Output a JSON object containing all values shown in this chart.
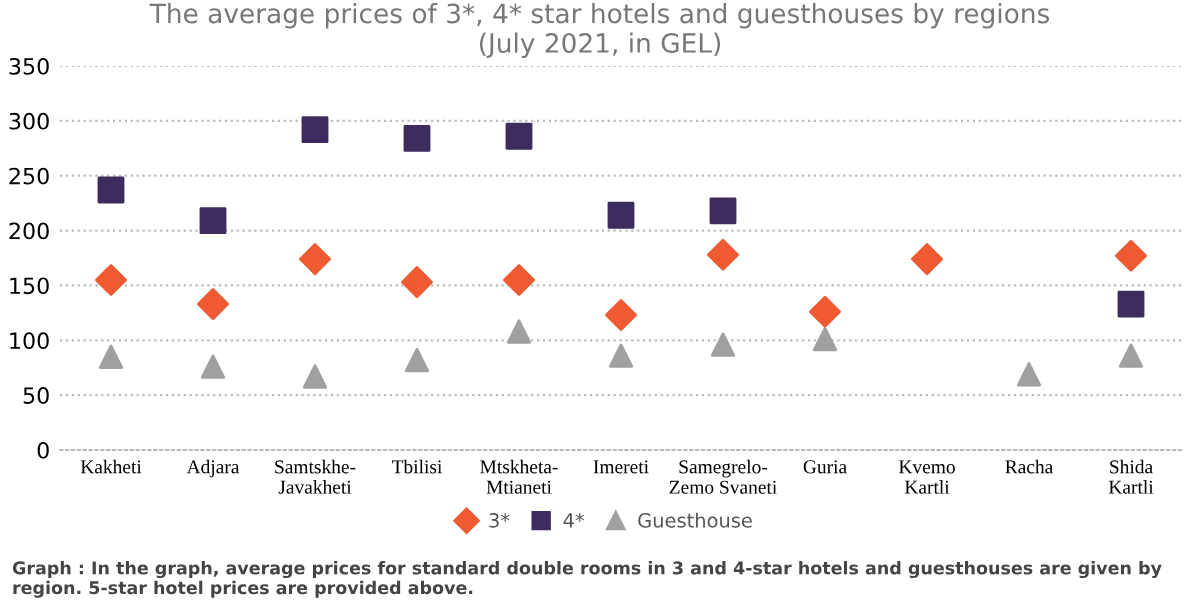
{
  "chart_data": {
    "type": "scatter",
    "title": "The average prices of 3*, 4* star hotels and guesthouses by regions\n(July 2021, in GEL)",
    "categories": [
      "Kakheti",
      "Adjara",
      "Samtskhe-\nJavakheti",
      "Tbilisi",
      "Mtskheta-\nMtianeti",
      "Imereti",
      "Samegrelo-\nZemo Svaneti",
      "Guria",
      "Kvemo\nKartli",
      "Racha",
      "Shida\nKartli"
    ],
    "series": [
      {
        "name": "3*",
        "color": "#f05a32",
        "marker": "diamond",
        "values": [
          155,
          133,
          174,
          153,
          155,
          123,
          178,
          126,
          174,
          null,
          177
        ]
      },
      {
        "name": "4*",
        "color": "#3d2c5e",
        "marker": "square",
        "values": [
          237,
          209,
          292,
          284,
          286,
          214,
          218,
          null,
          null,
          null,
          133
        ]
      },
      {
        "name": "Guesthouse",
        "color": "#a0a0a0",
        "marker": "triangle",
        "values": [
          85,
          76,
          67,
          82,
          108,
          86,
          96,
          101,
          null,
          69,
          86
        ]
      }
    ],
    "ylim": [
      0,
      350
    ],
    "yticks": [
      0,
      50,
      100,
      150,
      200,
      250,
      300,
      350
    ],
    "grid": "y",
    "legend": "bottom",
    "annotations": [
      "Graph : In the graph, average prices for standard double rooms in 3 and 4-star hotels and guesthouses are given by region. 5-star hotel prices are provided above."
    ]
  }
}
